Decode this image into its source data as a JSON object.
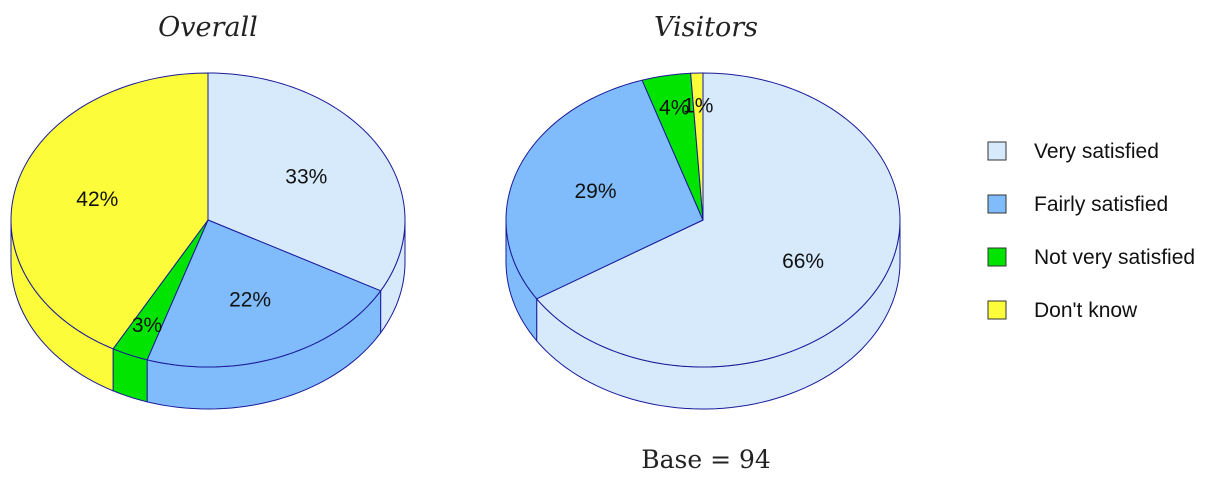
{
  "chart_data": [
    {
      "type": "pie",
      "title": "Overall",
      "categories": [
        "Very satisfied",
        "Fairly satisfied",
        "Not very satisfied",
        "Don't know"
      ],
      "values": [
        33,
        22,
        3,
        42
      ],
      "labels": [
        "33%",
        "22%",
        "3%",
        "42%"
      ]
    },
    {
      "type": "pie",
      "title": "Visitors",
      "categories": [
        "Very satisfied",
        "Fairly satisfied",
        "Not very satisfied",
        "Don't know"
      ],
      "values": [
        66,
        29,
        4,
        1
      ],
      "labels": [
        "66%",
        "29%",
        "4%",
        "1%"
      ]
    }
  ],
  "legend": {
    "placement": "right",
    "items": [
      {
        "label": "Very satisfied",
        "color": "#d6eafc"
      },
      {
        "label": "Fairly satisfied",
        "color": "#80bcfc"
      },
      {
        "label": "Not very satisfied",
        "color": "#00e400"
      },
      {
        "label": "Don't know",
        "color": "#fcfc3a"
      }
    ]
  },
  "colors": {
    "outline": "#1a1a9a",
    "side_outline": "#1a1a9a"
  },
  "footnote": "Base = 94"
}
